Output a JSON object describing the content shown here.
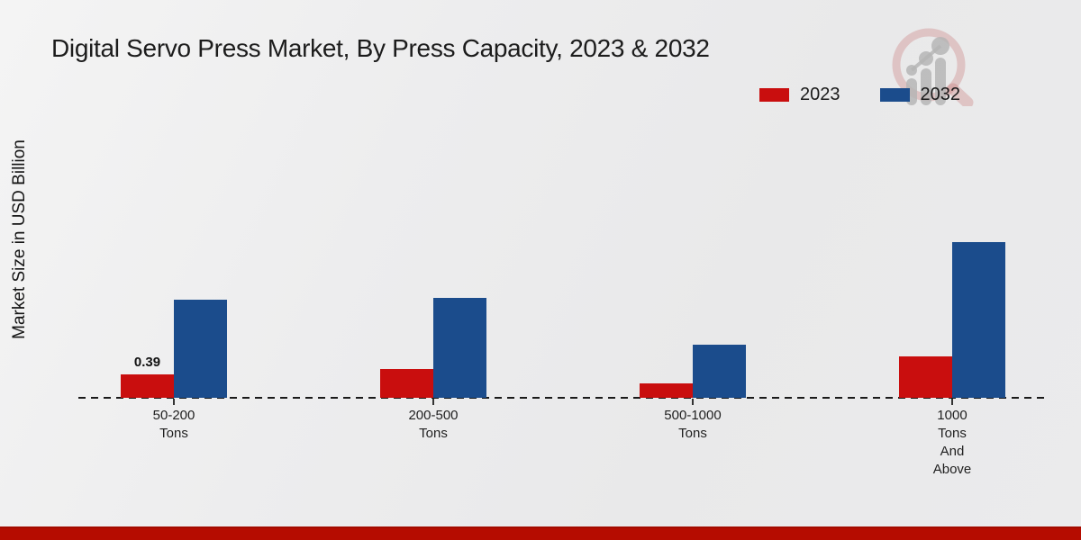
{
  "title": "Digital Servo Press Market, By Press Capacity, 2023 & 2032",
  "y_axis_label": "Market Size in USD Billion",
  "legend": [
    {
      "label": "2023",
      "color": "#c90e0e"
    },
    {
      "label": "2032",
      "color": "#1b4c8c"
    }
  ],
  "colors": {
    "series_2023": "#c90e0e",
    "series_2032": "#1b4c8c",
    "footer_strip": "#b50c00",
    "baseline": "#1a1a1a"
  },
  "watermark_icon": "magnifier-bar-chart-logo",
  "chart_data": {
    "type": "bar",
    "title": "Digital Servo Press Market, By Press Capacity, 2023 & 2032",
    "categories": [
      "50-200 Tons",
      "200-500 Tons",
      "500-1000 Tons",
      "1000 Tons And Above"
    ],
    "category_lines": [
      [
        "50-200",
        "Tons"
      ],
      [
        "200-500",
        "Tons"
      ],
      [
        "500-1000",
        "Tons"
      ],
      [
        "1000",
        "Tons",
        "And",
        "Above"
      ]
    ],
    "series": [
      {
        "name": "2023",
        "color": "#c90e0e",
        "values": [
          0.39,
          0.48,
          0.24,
          0.69
        ],
        "labels": [
          "0.39",
          "",
          "",
          ""
        ]
      },
      {
        "name": "2032",
        "color": "#1b4c8c",
        "values": [
          1.64,
          1.67,
          0.89,
          2.6
        ],
        "labels": [
          "",
          "",
          "",
          ""
        ]
      }
    ],
    "xlabel": "",
    "ylabel": "Market Size in USD Billion",
    "ylim": [
      0,
      3
    ],
    "grid": false,
    "axis_style": "dashed-baseline-only",
    "legend_position": "top-right"
  }
}
